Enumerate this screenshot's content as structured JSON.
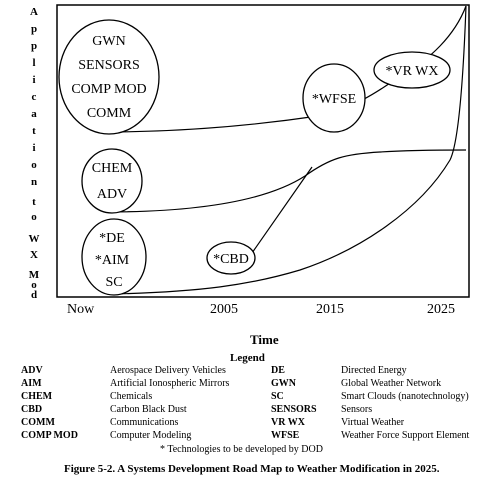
{
  "y_axis": {
    "label_letters": [
      "A",
      "p",
      "p",
      "l",
      "i",
      "c",
      "a",
      "t",
      "i",
      "o",
      "n",
      "t",
      "o",
      "W",
      "X",
      "M",
      "o",
      "d"
    ]
  },
  "x_axis": {
    "ticks": [
      "Now",
      "2005",
      "2015",
      "2025"
    ],
    "label": "Time"
  },
  "bubbles": [
    {
      "id": "bubble-1",
      "lines": [
        "GWN",
        "SENSORS",
        "COMP MOD",
        "COMM"
      ]
    },
    {
      "id": "bubble-2",
      "lines": [
        "CHEM",
        "ADV"
      ]
    },
    {
      "id": "bubble-3",
      "lines": [
        "*DE",
        "*AIM",
        "SC"
      ]
    },
    {
      "id": "bubble-4",
      "lines": [
        "*CBD"
      ]
    },
    {
      "id": "bubble-5",
      "lines": [
        "*WFSE"
      ]
    },
    {
      "id": "bubble-6",
      "lines": [
        "*VR WX"
      ]
    }
  ],
  "legend": {
    "title": "Legend",
    "left_column": [
      {
        "abbr": "ADV",
        "def": "Aerospace Delivery Vehicles"
      },
      {
        "abbr": "AIM",
        "def": "Artificial Ionospheric Mirrors"
      },
      {
        "abbr": "CHEM",
        "def": "Chemicals"
      },
      {
        "abbr": "CBD",
        "def": "Carbon Black Dust"
      },
      {
        "abbr": "COMM",
        "def": "Communications"
      },
      {
        "abbr": "COMP MOD",
        "def": "Computer Modeling"
      }
    ],
    "right_column": [
      {
        "abbr": "DE",
        "def": "Directed Energy"
      },
      {
        "abbr": "GWN",
        "def": "Global Weather Network"
      },
      {
        "abbr": "SC",
        "def": "Smart Clouds (nanotechnology)"
      },
      {
        "abbr": "SENSORS",
        "def": "Sensors"
      },
      {
        "abbr": "VR WX",
        "def": "Virtual Weather"
      },
      {
        "abbr": "WFSE",
        "def": "Weather Force Support Element"
      }
    ]
  },
  "footnote": "* Technologies to be developed by DOD",
  "caption": "Figure 5-2. A Systems Development Road Map to Weather Modification in 2025."
}
